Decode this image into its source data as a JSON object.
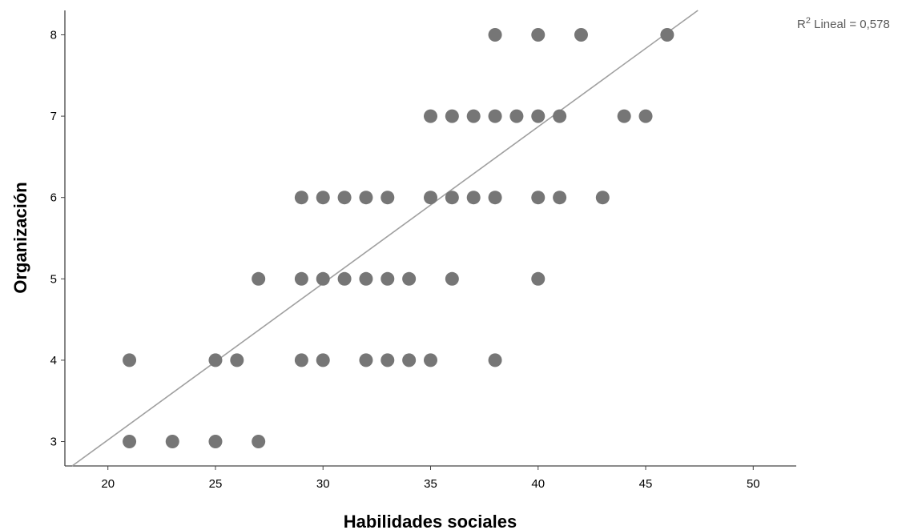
{
  "chart_data": {
    "type": "scatter",
    "xlabel": "Habilidades sociales",
    "ylabel": "Organización",
    "xlim": [
      18,
      52
    ],
    "ylim": [
      2.7,
      8.3
    ],
    "xticks": [
      20,
      25,
      30,
      35,
      40,
      45,
      50
    ],
    "yticks": [
      3,
      4,
      5,
      6,
      7,
      8
    ],
    "grid": false,
    "marker_color": "#767676",
    "fit_line_color": "#a0a0a0",
    "fit_line": {
      "type": "linear",
      "slope": 0.1925,
      "intercept": -0.83,
      "r2_prefix": "R",
      "r2_superscript": "2",
      "r2_text": " Lineal = 0,578"
    },
    "points": [
      {
        "x": 38,
        "y": 8
      },
      {
        "x": 40,
        "y": 8
      },
      {
        "x": 42,
        "y": 8
      },
      {
        "x": 46,
        "y": 8
      },
      {
        "x": 35,
        "y": 7
      },
      {
        "x": 36,
        "y": 7
      },
      {
        "x": 37,
        "y": 7
      },
      {
        "x": 38,
        "y": 7
      },
      {
        "x": 39,
        "y": 7
      },
      {
        "x": 40,
        "y": 7
      },
      {
        "x": 41,
        "y": 7
      },
      {
        "x": 44,
        "y": 7
      },
      {
        "x": 45,
        "y": 7
      },
      {
        "x": 29,
        "y": 6
      },
      {
        "x": 30,
        "y": 6
      },
      {
        "x": 31,
        "y": 6
      },
      {
        "x": 32,
        "y": 6
      },
      {
        "x": 33,
        "y": 6
      },
      {
        "x": 35,
        "y": 6
      },
      {
        "x": 36,
        "y": 6
      },
      {
        "x": 37,
        "y": 6
      },
      {
        "x": 38,
        "y": 6
      },
      {
        "x": 40,
        "y": 6
      },
      {
        "x": 41,
        "y": 6
      },
      {
        "x": 43,
        "y": 6
      },
      {
        "x": 27,
        "y": 5
      },
      {
        "x": 29,
        "y": 5
      },
      {
        "x": 30,
        "y": 5
      },
      {
        "x": 31,
        "y": 5
      },
      {
        "x": 32,
        "y": 5
      },
      {
        "x": 33,
        "y": 5
      },
      {
        "x": 34,
        "y": 5
      },
      {
        "x": 36,
        "y": 5
      },
      {
        "x": 40,
        "y": 5
      },
      {
        "x": 21,
        "y": 4
      },
      {
        "x": 25,
        "y": 4
      },
      {
        "x": 26,
        "y": 4
      },
      {
        "x": 29,
        "y": 4
      },
      {
        "x": 30,
        "y": 4
      },
      {
        "x": 32,
        "y": 4
      },
      {
        "x": 33,
        "y": 4
      },
      {
        "x": 34,
        "y": 4
      },
      {
        "x": 35,
        "y": 4
      },
      {
        "x": 38,
        "y": 4
      },
      {
        "x": 21,
        "y": 3
      },
      {
        "x": 23,
        "y": 3
      },
      {
        "x": 25,
        "y": 3
      },
      {
        "x": 27,
        "y": 3
      }
    ]
  }
}
